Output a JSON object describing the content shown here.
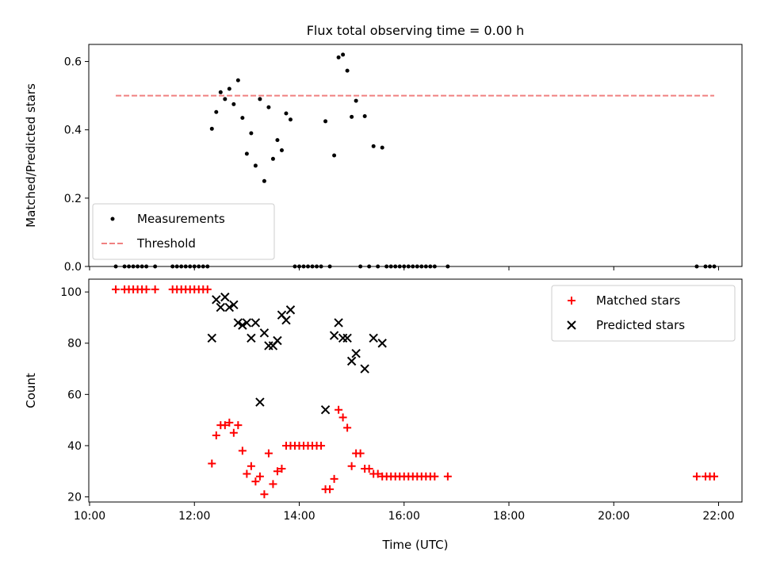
{
  "chart_data": [
    {
      "type": "scatter",
      "title": "Flux total observing time = 0.00 h",
      "xlabel": "",
      "ylabel": "Matched/Predicted stars",
      "xlim": [
        "10:00",
        "22:00"
      ],
      "ylim": [
        0,
        0.65
      ],
      "x_ticks": [
        "10:00",
        "12:00",
        "14:00",
        "16:00",
        "18:00",
        "20:00",
        "22:00"
      ],
      "y_ticks": [
        "0.0",
        "0.2",
        "0.4",
        "0.6"
      ],
      "legend_position": "lower-left",
      "series": [
        {
          "name": "Measurements",
          "style": "dot",
          "color": "#000000",
          "points": [
            [
              "10:30",
              0
            ],
            [
              "10:40",
              0
            ],
            [
              "10:45",
              0
            ],
            [
              "10:50",
              0
            ],
            [
              "10:55",
              0
            ],
            [
              "11:00",
              0
            ],
            [
              "11:05",
              0
            ],
            [
              "11:15",
              0
            ],
            [
              "11:35",
              0
            ],
            [
              "11:40",
              0
            ],
            [
              "11:45",
              0
            ],
            [
              "11:50",
              0
            ],
            [
              "11:55",
              0
            ],
            [
              "12:00",
              0
            ],
            [
              "12:05",
              0
            ],
            [
              "12:10",
              0
            ],
            [
              "12:15",
              0
            ],
            [
              "12:20",
              0.403
            ],
            [
              "12:25",
              0.452
            ],
            [
              "12:30",
              0.51
            ],
            [
              "12:35",
              0.49
            ],
            [
              "12:40",
              0.52
            ],
            [
              "12:45",
              0.475
            ],
            [
              "12:50",
              0.545
            ],
            [
              "12:55",
              0.435
            ],
            [
              "13:00",
              0.33
            ],
            [
              "13:05",
              0.39
            ],
            [
              "13:10",
              0.295
            ],
            [
              "13:15",
              0.49
            ],
            [
              "13:20",
              0.25
            ],
            [
              "13:25",
              0.466
            ],
            [
              "13:30",
              0.315
            ],
            [
              "13:35",
              0.37
            ],
            [
              "13:40",
              0.34
            ],
            [
              "13:45",
              0.448
            ],
            [
              "13:50",
              0.43
            ],
            [
              "13:55",
              0
            ],
            [
              "14:00",
              0
            ],
            [
              "14:05",
              0
            ],
            [
              "14:10",
              0
            ],
            [
              "14:15",
              0
            ],
            [
              "14:20",
              0
            ],
            [
              "14:25",
              0
            ],
            [
              "14:35",
              0
            ],
            [
              "14:30",
              0.425
            ],
            [
              "14:40",
              0.325
            ],
            [
              "14:45",
              0.612
            ],
            [
              "14:50",
              0.62
            ],
            [
              "14:55",
              0.573
            ],
            [
              "15:00",
              0.438
            ],
            [
              "15:05",
              0.485
            ],
            [
              "15:15",
              0.44
            ],
            [
              "15:25",
              0.352
            ],
            [
              "15:35",
              0.348
            ],
            [
              "15:10",
              0
            ],
            [
              "15:20",
              0
            ],
            [
              "15:30",
              0
            ],
            [
              "15:40",
              0
            ],
            [
              "15:45",
              0
            ],
            [
              "15:50",
              0
            ],
            [
              "15:55",
              0
            ],
            [
              "16:00",
              0
            ],
            [
              "16:05",
              0
            ],
            [
              "16:10",
              0
            ],
            [
              "16:15",
              0
            ],
            [
              "16:20",
              0
            ],
            [
              "16:25",
              0
            ],
            [
              "16:30",
              0
            ],
            [
              "16:35",
              0
            ],
            [
              "16:50",
              0
            ],
            [
              "21:35",
              0
            ],
            [
              "21:45",
              0
            ],
            [
              "21:50",
              0
            ],
            [
              "21:55",
              0
            ]
          ]
        },
        {
          "name": "Threshold",
          "style": "dashed-line",
          "color": "#f08080",
          "points": [
            [
              "10:30",
              0.5
            ],
            [
              "21:55",
              0.5
            ]
          ]
        }
      ]
    },
    {
      "type": "scatter",
      "title": "",
      "xlabel": "Time (UTC)",
      "ylabel": "Count",
      "xlim": [
        "10:00",
        "22:00"
      ],
      "ylim": [
        18,
        105
      ],
      "x_ticks": [
        "10:00",
        "12:00",
        "14:00",
        "16:00",
        "18:00",
        "20:00",
        "22:00"
      ],
      "y_ticks": [
        "20",
        "40",
        "60",
        "80",
        "100"
      ],
      "legend_position": "top-right",
      "series": [
        {
          "name": "Matched stars",
          "style": "plus",
          "color": "#ff0000",
          "points": [
            [
              "10:30",
              101
            ],
            [
              "10:40",
              101
            ],
            [
              "10:45",
              101
            ],
            [
              "10:50",
              101
            ],
            [
              "10:55",
              101
            ],
            [
              "11:00",
              101
            ],
            [
              "11:05",
              101
            ],
            [
              "11:15",
              101
            ],
            [
              "11:35",
              101
            ],
            [
              "11:40",
              101
            ],
            [
              "11:45",
              101
            ],
            [
              "11:50",
              101
            ],
            [
              "11:55",
              101
            ],
            [
              "12:00",
              101
            ],
            [
              "12:05",
              101
            ],
            [
              "12:10",
              101
            ],
            [
              "12:15",
              101
            ],
            [
              "12:20",
              33
            ],
            [
              "12:25",
              44
            ],
            [
              "12:30",
              48
            ],
            [
              "12:35",
              48
            ],
            [
              "12:40",
              49
            ],
            [
              "12:45",
              45
            ],
            [
              "12:50",
              48
            ],
            [
              "12:55",
              38
            ],
            [
              "13:00",
              29
            ],
            [
              "13:05",
              32
            ],
            [
              "13:10",
              26
            ],
            [
              "13:15",
              28
            ],
            [
              "13:20",
              21
            ],
            [
              "13:25",
              37
            ],
            [
              "13:30",
              25
            ],
            [
              "13:35",
              30
            ],
            [
              "13:40",
              31
            ],
            [
              "13:45",
              40
            ],
            [
              "13:50",
              40
            ],
            [
              "13:55",
              40
            ],
            [
              "14:00",
              40
            ],
            [
              "14:05",
              40
            ],
            [
              "14:10",
              40
            ],
            [
              "14:15",
              40
            ],
            [
              "14:20",
              40
            ],
            [
              "14:25",
              40
            ],
            [
              "14:30",
              23
            ],
            [
              "14:35",
              23
            ],
            [
              "14:40",
              27
            ],
            [
              "14:45",
              54
            ],
            [
              "14:50",
              51
            ],
            [
              "14:55",
              47
            ],
            [
              "15:00",
              32
            ],
            [
              "15:05",
              37
            ],
            [
              "15:10",
              37
            ],
            [
              "15:15",
              31
            ],
            [
              "15:20",
              31
            ],
            [
              "15:25",
              29
            ],
            [
              "15:30",
              29
            ],
            [
              "15:35",
              28
            ],
            [
              "15:40",
              28
            ],
            [
              "15:45",
              28
            ],
            [
              "15:50",
              28
            ],
            [
              "15:55",
              28
            ],
            [
              "16:00",
              28
            ],
            [
              "16:05",
              28
            ],
            [
              "16:10",
              28
            ],
            [
              "16:15",
              28
            ],
            [
              "16:20",
              28
            ],
            [
              "16:25",
              28
            ],
            [
              "16:30",
              28
            ],
            [
              "16:35",
              28
            ],
            [
              "16:50",
              28
            ],
            [
              "21:35",
              28
            ],
            [
              "21:45",
              28
            ],
            [
              "21:50",
              28
            ],
            [
              "21:55",
              28
            ]
          ]
        },
        {
          "name": "Predicted stars",
          "style": "x",
          "color": "#000000",
          "points": [
            [
              "12:20",
              82
            ],
            [
              "12:25",
              97
            ],
            [
              "12:30",
              94
            ],
            [
              "12:35",
              98
            ],
            [
              "12:40",
              94
            ],
            [
              "12:45",
              95
            ],
            [
              "12:50",
              88
            ],
            [
              "12:55",
              87
            ],
            [
              "13:00",
              88
            ],
            [
              "13:05",
              82
            ],
            [
              "13:10",
              88
            ],
            [
              "13:15",
              57
            ],
            [
              "13:20",
              84
            ],
            [
              "13:25",
              79
            ],
            [
              "13:30",
              79
            ],
            [
              "13:35",
              81
            ],
            [
              "13:40",
              91
            ],
            [
              "13:45",
              89
            ],
            [
              "13:50",
              93
            ],
            [
              "14:30",
              54
            ],
            [
              "14:40",
              83
            ],
            [
              "14:45",
              88
            ],
            [
              "14:50",
              82
            ],
            [
              "14:55",
              82
            ],
            [
              "15:00",
              73
            ],
            [
              "15:05",
              76
            ],
            [
              "15:15",
              70
            ],
            [
              "15:25",
              82
            ],
            [
              "15:35",
              80
            ]
          ]
        }
      ]
    }
  ]
}
